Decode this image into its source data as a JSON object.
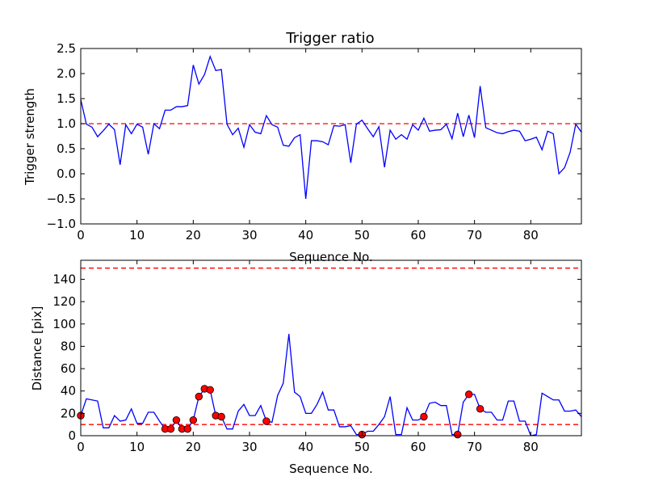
{
  "chart_data": [
    {
      "type": "line",
      "title": "Trigger ratio",
      "xlabel": "Sequence No.",
      "ylabel": "Trigger strength",
      "xlim": [
        0,
        89
      ],
      "ylim": [
        -1.0,
        2.5
      ],
      "xticks": [
        0,
        10,
        20,
        30,
        40,
        50,
        60,
        70,
        80
      ],
      "xtick_labels": [
        "0",
        "10",
        "20",
        "30",
        "40",
        "50",
        "60",
        "70",
        "80"
      ],
      "yticks": [
        -1.0,
        -0.5,
        0.0,
        0.5,
        1.0,
        1.5,
        2.0,
        2.5
      ],
      "ytick_labels": [
        "−1.0",
        "−0.5",
        "0.0",
        "0.5",
        "1.0",
        "1.5",
        "2.0",
        "2.5"
      ],
      "threshold": 1.0,
      "series": [
        {
          "name": "Trigger strength",
          "color": "#0000ff",
          "x": [
            0,
            1,
            2,
            3,
            4,
            5,
            6,
            7,
            8,
            9,
            10,
            11,
            12,
            13,
            14,
            15,
            16,
            17,
            18,
            19,
            20,
            21,
            22,
            23,
            24,
            25,
            26,
            27,
            28,
            29,
            30,
            31,
            32,
            33,
            34,
            35,
            36,
            37,
            38,
            39,
            40,
            41,
            42,
            43,
            44,
            45,
            46,
            47,
            48,
            49,
            50,
            51,
            52,
            53,
            54,
            55,
            56,
            57,
            58,
            59,
            60,
            61,
            62,
            63,
            64,
            65,
            66,
            67,
            68,
            69,
            70,
            71,
            72,
            73,
            74,
            75,
            76,
            77,
            78,
            79,
            80,
            81,
            82,
            83,
            84,
            85,
            86,
            87,
            88,
            89
          ],
          "y": [
            1.48,
            0.99,
            0.93,
            0.74,
            0.86,
            0.99,
            0.88,
            0.18,
            0.98,
            0.8,
            0.99,
            0.93,
            0.39,
            1.0,
            0.9,
            1.27,
            1.27,
            1.34,
            1.34,
            1.36,
            2.17,
            1.79,
            1.98,
            2.34,
            2.06,
            2.08,
            0.99,
            0.78,
            0.91,
            0.53,
            0.98,
            0.83,
            0.8,
            1.16,
            0.98,
            0.93,
            0.57,
            0.55,
            0.72,
            0.78,
            -0.5,
            0.66,
            0.66,
            0.64,
            0.58,
            0.96,
            0.95,
            0.98,
            0.22,
            0.99,
            1.07,
            0.9,
            0.74,
            0.94,
            0.13,
            0.87,
            0.69,
            0.78,
            0.69,
            0.98,
            0.87,
            1.11,
            0.85,
            0.87,
            0.88,
            0.99,
            0.7,
            1.21,
            0.74,
            1.17,
            0.72,
            1.75,
            0.92,
            0.87,
            0.82,
            0.8,
            0.84,
            0.87,
            0.85,
            0.66,
            0.69,
            0.73,
            0.48,
            0.85,
            0.8,
            0.0,
            0.12,
            0.43,
            0.99,
            0.83
          ]
        }
      ]
    },
    {
      "type": "line",
      "title": "",
      "xlabel": "Sequence No.",
      "ylabel": "Distance [pix]",
      "xlim": [
        0,
        89
      ],
      "ylim": [
        0,
        157
      ],
      "xticks": [
        0,
        10,
        20,
        30,
        40,
        50,
        60,
        70,
        80
      ],
      "xtick_labels": [
        "0",
        "10",
        "20",
        "30",
        "40",
        "50",
        "60",
        "70",
        "80"
      ],
      "yticks": [
        0,
        20,
        40,
        60,
        80,
        100,
        120,
        140
      ],
      "ytick_labels": [
        "0",
        "20",
        "40",
        "60",
        "80",
        "100",
        "120",
        "140"
      ],
      "thresholds": [
        10,
        150
      ],
      "series": [
        {
          "name": "Distance",
          "color": "#0000ff",
          "x": [
            0,
            1,
            2,
            3,
            4,
            5,
            6,
            7,
            8,
            9,
            10,
            11,
            12,
            13,
            14,
            15,
            16,
            17,
            18,
            19,
            20,
            21,
            22,
            23,
            24,
            25,
            26,
            27,
            28,
            29,
            30,
            31,
            32,
            33,
            34,
            35,
            36,
            37,
            38,
            39,
            40,
            41,
            42,
            43,
            44,
            45,
            46,
            47,
            48,
            49,
            50,
            51,
            52,
            53,
            54,
            55,
            56,
            57,
            58,
            59,
            60,
            61,
            62,
            63,
            64,
            65,
            66,
            67,
            68,
            69,
            70,
            71,
            72,
            73,
            74,
            75,
            76,
            77,
            78,
            79,
            80,
            81,
            82,
            83,
            84,
            85,
            86,
            87,
            88,
            89
          ],
          "y": [
            18,
            33,
            32,
            31,
            7,
            7,
            18,
            13,
            14,
            24,
            11,
            11,
            21,
            21,
            13,
            6,
            6,
            14,
            6,
            6,
            14,
            35,
            42,
            41,
            18,
            17,
            6,
            6,
            22,
            28,
            18,
            18,
            27,
            13,
            12,
            36,
            47,
            91,
            39,
            35,
            20,
            20,
            28,
            39,
            23,
            23,
            8,
            8,
            9,
            1,
            1,
            4,
            4,
            10,
            17,
            35,
            1,
            1,
            25,
            14,
            14,
            17,
            29,
            30,
            27,
            27,
            1,
            1,
            30,
            37,
            37,
            24,
            21,
            21,
            14,
            14,
            31,
            31,
            13,
            13,
            0,
            1,
            38,
            35,
            32,
            32,
            22,
            22,
            23,
            17
          ]
        },
        {
          "name": "Flagged points",
          "color": "#ff0000",
          "marker": "circle",
          "x": [
            0,
            15,
            16,
            17,
            18,
            19,
            20,
            21,
            22,
            23,
            24,
            25,
            33,
            50,
            61,
            67,
            69,
            71
          ],
          "y": [
            18,
            6,
            6,
            14,
            6,
            6,
            14,
            35,
            42,
            41,
            18,
            17,
            13,
            1,
            17,
            1,
            37,
            24
          ]
        }
      ]
    }
  ]
}
